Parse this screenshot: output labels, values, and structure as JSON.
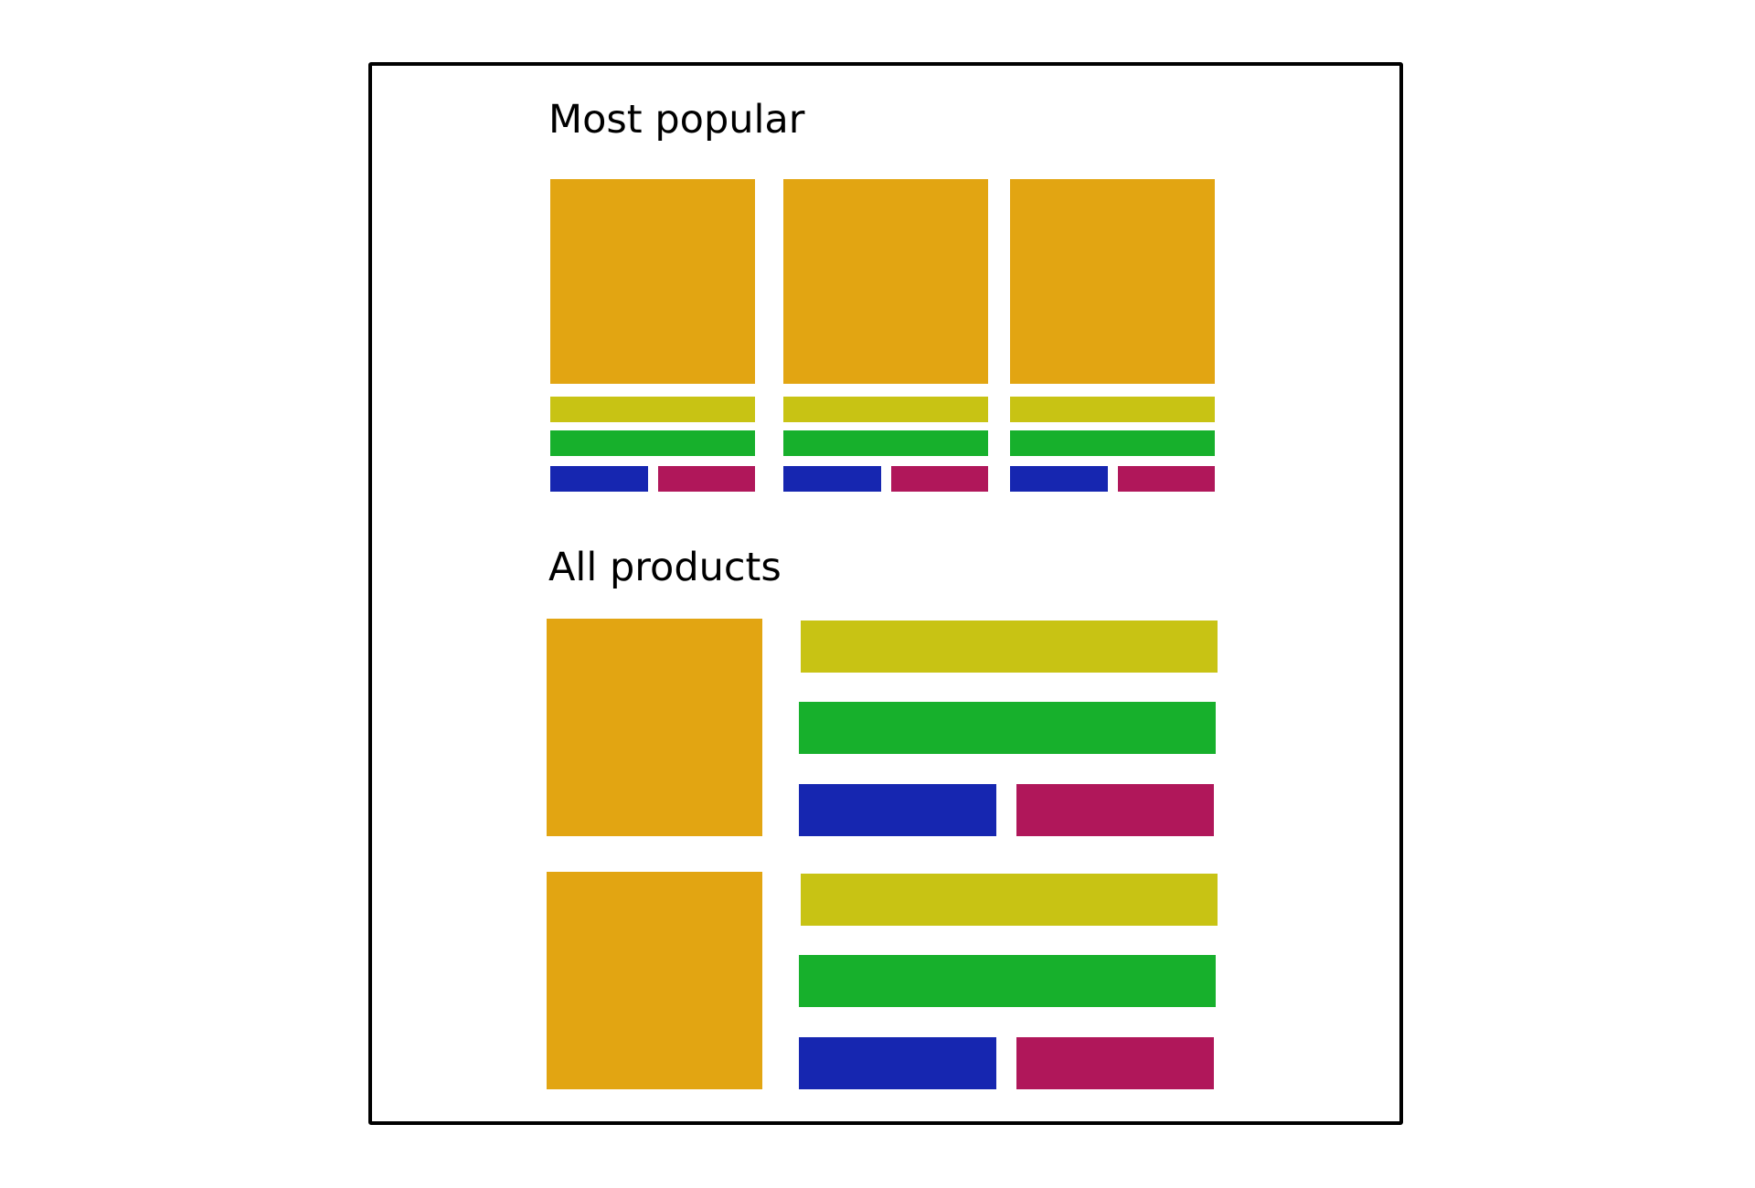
{
  "sections": {
    "popular": {
      "heading": "Most popular"
    },
    "all": {
      "heading": "All products"
    }
  },
  "colors": {
    "image_placeholder": "#e2a512",
    "title_placeholder": "#c8c314",
    "price_placeholder": "#17b02c",
    "primary_action": "#1626b0",
    "secondary_action": "#b0175a",
    "frame_border": "#000000"
  }
}
